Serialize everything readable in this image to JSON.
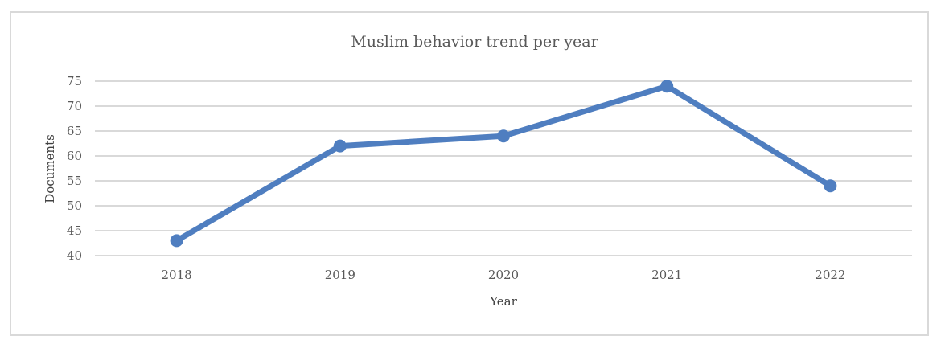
{
  "chart_data": {
    "type": "line",
    "title": "Muslim behavior trend per year",
    "xlabel": "Year",
    "ylabel": "Documents",
    "categories": [
      "2018",
      "2019",
      "2020",
      "2021",
      "2022"
    ],
    "series": [
      {
        "values": [
          43,
          62,
          64,
          74,
          54
        ],
        "color": "#4f7ec0"
      }
    ],
    "ylim": [
      40,
      75
    ],
    "yticks": [
      40,
      45,
      50,
      55,
      60,
      65,
      70,
      75
    ],
    "grid": true,
    "legend": "none"
  }
}
